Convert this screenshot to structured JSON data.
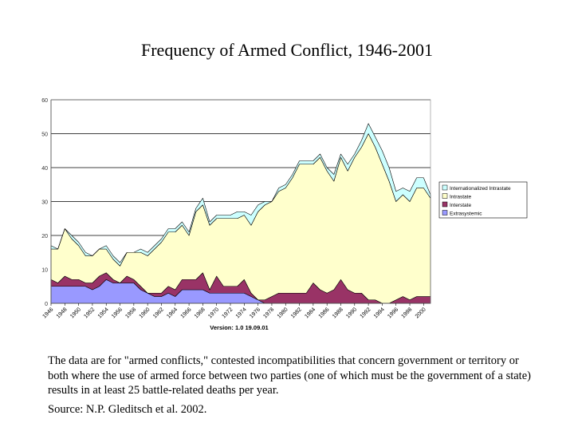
{
  "slide": {
    "title": "Frequency of Armed Conflict, 1946-2001",
    "description": "The data are for \"armed conflicts,\" contested incompatibilities that concern government or territory or both where the use of armed force between two parties (one of which must be the government of a state) results in at least 25 battle-related deaths per year.",
    "source": "Source: N.P. Gleditsch et al. 2002."
  },
  "chart_data": {
    "type": "area",
    "stacked": true,
    "title": "",
    "version_label": "Version: 1.0 19.09.01",
    "x": [
      1946,
      1947,
      1948,
      1949,
      1950,
      1951,
      1952,
      1953,
      1954,
      1955,
      1956,
      1957,
      1958,
      1959,
      1960,
      1961,
      1962,
      1963,
      1964,
      1965,
      1966,
      1967,
      1968,
      1969,
      1970,
      1971,
      1972,
      1973,
      1974,
      1975,
      1976,
      1977,
      1978,
      1979,
      1980,
      1981,
      1982,
      1983,
      1984,
      1985,
      1986,
      1987,
      1988,
      1989,
      1990,
      1991,
      1992,
      1993,
      1994,
      1995,
      1996,
      1997,
      1998,
      1999,
      2000,
      2001
    ],
    "xtick_labels": [
      "1946",
      "1948",
      "1950",
      "1952",
      "1954",
      "1956",
      "1958",
      "1960",
      "1962",
      "1964",
      "1966",
      "1968",
      "1970",
      "1972",
      "1974",
      "1976",
      "1978",
      "1980",
      "1982",
      "1984",
      "1986",
      "1988",
      "1990",
      "1992",
      "1994",
      "1996",
      "1998",
      "2000"
    ],
    "ylim": [
      0,
      60
    ],
    "yticks": [
      "0",
      "10",
      "20",
      "30",
      "40",
      "50",
      "60"
    ],
    "grid": true,
    "legend_position": "right",
    "series": [
      {
        "name": "Extrasystemic",
        "color": "#9999ff",
        "values": [
          5,
          5,
          5,
          5,
          5,
          5,
          4,
          5,
          7,
          6,
          6,
          6,
          6,
          4,
          3,
          2,
          2,
          3,
          2,
          4,
          4,
          4,
          4,
          3,
          3,
          3,
          3,
          3,
          3,
          2,
          1,
          0,
          0,
          0,
          0,
          0,
          0,
          0,
          0,
          0,
          0,
          0,
          0,
          0,
          0,
          0,
          0,
          0,
          0,
          0,
          0,
          0,
          0,
          0,
          0,
          0
        ]
      },
      {
        "name": "Interstate",
        "color": "#993366",
        "values": [
          2,
          1,
          3,
          2,
          2,
          1,
          2,
          3,
          2,
          1,
          0,
          2,
          1,
          1,
          0,
          1,
          1,
          2,
          2,
          3,
          3,
          3,
          5,
          1,
          5,
          2,
          2,
          2,
          4,
          1,
          0,
          1,
          2,
          3,
          3,
          3,
          3,
          3,
          6,
          4,
          3,
          4,
          7,
          4,
          3,
          3,
          1,
          1,
          0,
          0,
          1,
          2,
          1,
          2,
          2,
          2
        ]
      },
      {
        "name": "Intrastate",
        "color": "#ffffcc",
        "values": [
          9,
          10,
          14,
          12,
          10,
          8,
          8,
          8,
          7,
          6,
          5,
          7,
          8,
          10,
          11,
          13,
          15,
          16,
          17,
          16,
          13,
          20,
          20,
          19,
          17,
          20,
          20,
          20,
          19,
          20,
          26,
          28,
          28,
          30,
          31,
          34,
          38,
          38,
          35,
          39,
          36,
          32,
          36,
          35,
          40,
          43,
          49,
          45,
          41,
          36,
          29,
          30,
          29,
          32,
          32,
          29
        ]
      },
      {
        "name": "Internationalized Intrastate",
        "color": "#ccffff",
        "values": [
          1,
          0,
          0,
          1,
          1,
          1,
          0,
          0,
          1,
          1,
          1,
          0,
          0,
          1,
          1,
          1,
          1,
          1,
          1,
          1,
          1,
          1,
          2,
          1,
          1,
          1,
          1,
          2,
          1,
          3,
          2,
          1,
          0,
          1,
          1,
          1,
          1,
          1,
          1,
          1,
          1,
          2,
          1,
          2,
          1,
          2,
          3,
          3,
          4,
          4,
          3,
          2,
          3,
          3,
          3,
          1
        ]
      }
    ]
  }
}
